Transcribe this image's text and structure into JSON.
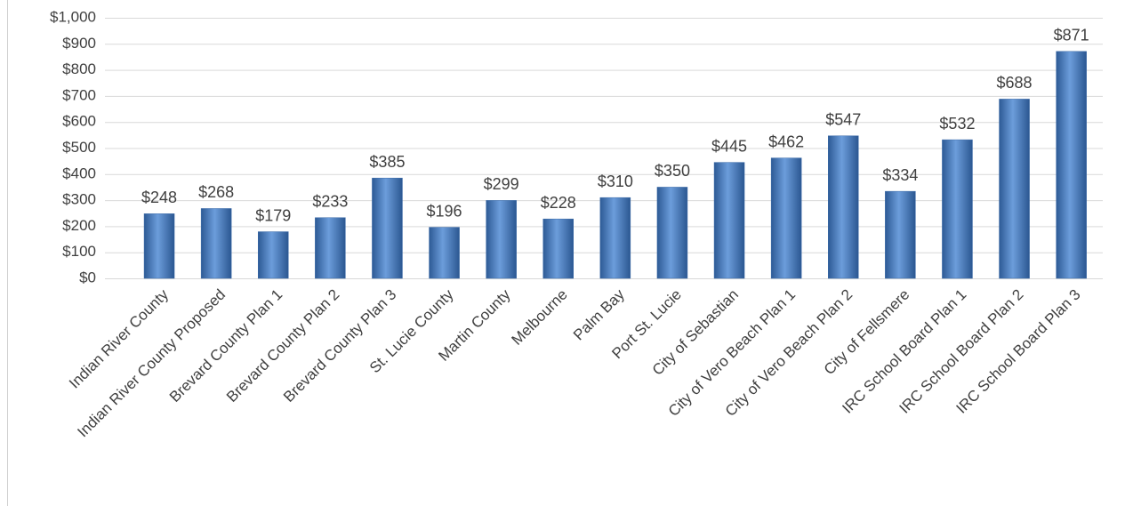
{
  "chart_data": {
    "type": "bar",
    "categories": [
      "Indian River County",
      "Indian River County Proposed",
      "Brevard County Plan 1",
      "Brevard County Plan 2",
      "Brevard County Plan 3",
      "St. Lucie County",
      "Martin County",
      "Melbourne",
      "Palm Bay",
      "Port St. Lucie",
      "City of Sebastian",
      "City of Vero Beach Plan 1",
      "City of Vero Beach Plan 2",
      "City of Fellsmere",
      "IRC School Board Plan 1",
      "IRC School Board Plan 2",
      "IRC School Board Plan 3"
    ],
    "values": [
      248,
      268,
      179,
      233,
      385,
      196,
      299,
      228,
      310,
      350,
      445,
      462,
      547,
      334,
      532,
      688,
      871
    ],
    "value_labels": [
      "$248",
      "$268",
      "$179",
      "$233",
      "$385",
      "$196",
      "$299",
      "$228",
      "$310",
      "$350",
      "$445",
      "$462",
      "$547",
      "$334",
      "$532",
      "$688",
      "$871"
    ],
    "color": "#4f81bd",
    "ylim": [
      0,
      1000
    ],
    "yticks": [
      {
        "value": 0,
        "label": "$0"
      },
      {
        "value": 100,
        "label": "$100"
      },
      {
        "value": 200,
        "label": "$200"
      },
      {
        "value": 300,
        "label": "$300"
      },
      {
        "value": 400,
        "label": "$400"
      },
      {
        "value": 500,
        "label": "$500"
      },
      {
        "value": 600,
        "label": "$600"
      },
      {
        "value": 700,
        "label": "$700"
      },
      {
        "value": 800,
        "label": "$800"
      },
      {
        "value": 900,
        "label": "$900"
      },
      {
        "value": 1000,
        "label": "$1,000"
      }
    ],
    "grid": true
  }
}
